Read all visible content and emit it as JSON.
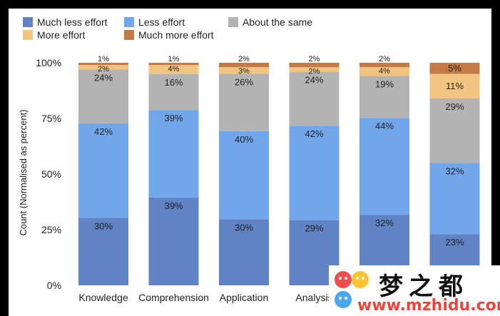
{
  "chart_data": {
    "type": "bar",
    "stacked": true,
    "normalized": true,
    "ylabel": "Count (Normalised as percent)",
    "yticks": [
      "0%",
      "25%",
      "50%",
      "75%",
      "100%"
    ],
    "ylim": [
      0,
      100
    ],
    "legend_position": "top",
    "categories": [
      "Knowledge",
      "Comprehension",
      "Application",
      "Analysis",
      "",
      ""
    ],
    "series": [
      {
        "name": "Much less effort",
        "color": "#5f83c4",
        "values": [
          30,
          39,
          30,
          29,
          32,
          23
        ],
        "labels": [
          "30%",
          "39%",
          "30%",
          "29%",
          "32%",
          "23%"
        ]
      },
      {
        "name": "Less effort",
        "color": "#72a6ea",
        "values": [
          42,
          39,
          40,
          42,
          44,
          32
        ],
        "labels": [
          "42%",
          "39%",
          "40%",
          "42%",
          "44%",
          "32%"
        ]
      },
      {
        "name": "About the same",
        "color": "#b3b3b3",
        "values": [
          24,
          16,
          26,
          24,
          19,
          29
        ],
        "labels": [
          "24%",
          "16%",
          "26%",
          "24%",
          "19%",
          "29%"
        ]
      },
      {
        "name": "More effort",
        "color": "#f1c47f",
        "values": [
          2,
          4,
          3,
          2,
          4,
          11
        ],
        "labels": [
          "2%",
          "4%",
          "3%",
          "2%",
          "4%",
          "11%"
        ]
      },
      {
        "name": "Much more effort",
        "color": "#c47a47",
        "values": [
          1,
          1,
          2,
          2,
          2,
          5
        ],
        "labels": [
          "1%",
          "1%",
          "2%",
          "2%",
          "2%",
          "5%"
        ]
      }
    ]
  },
  "watermark": {
    "chinese": "梦之都",
    "url": "www.mzhidu.com"
  }
}
